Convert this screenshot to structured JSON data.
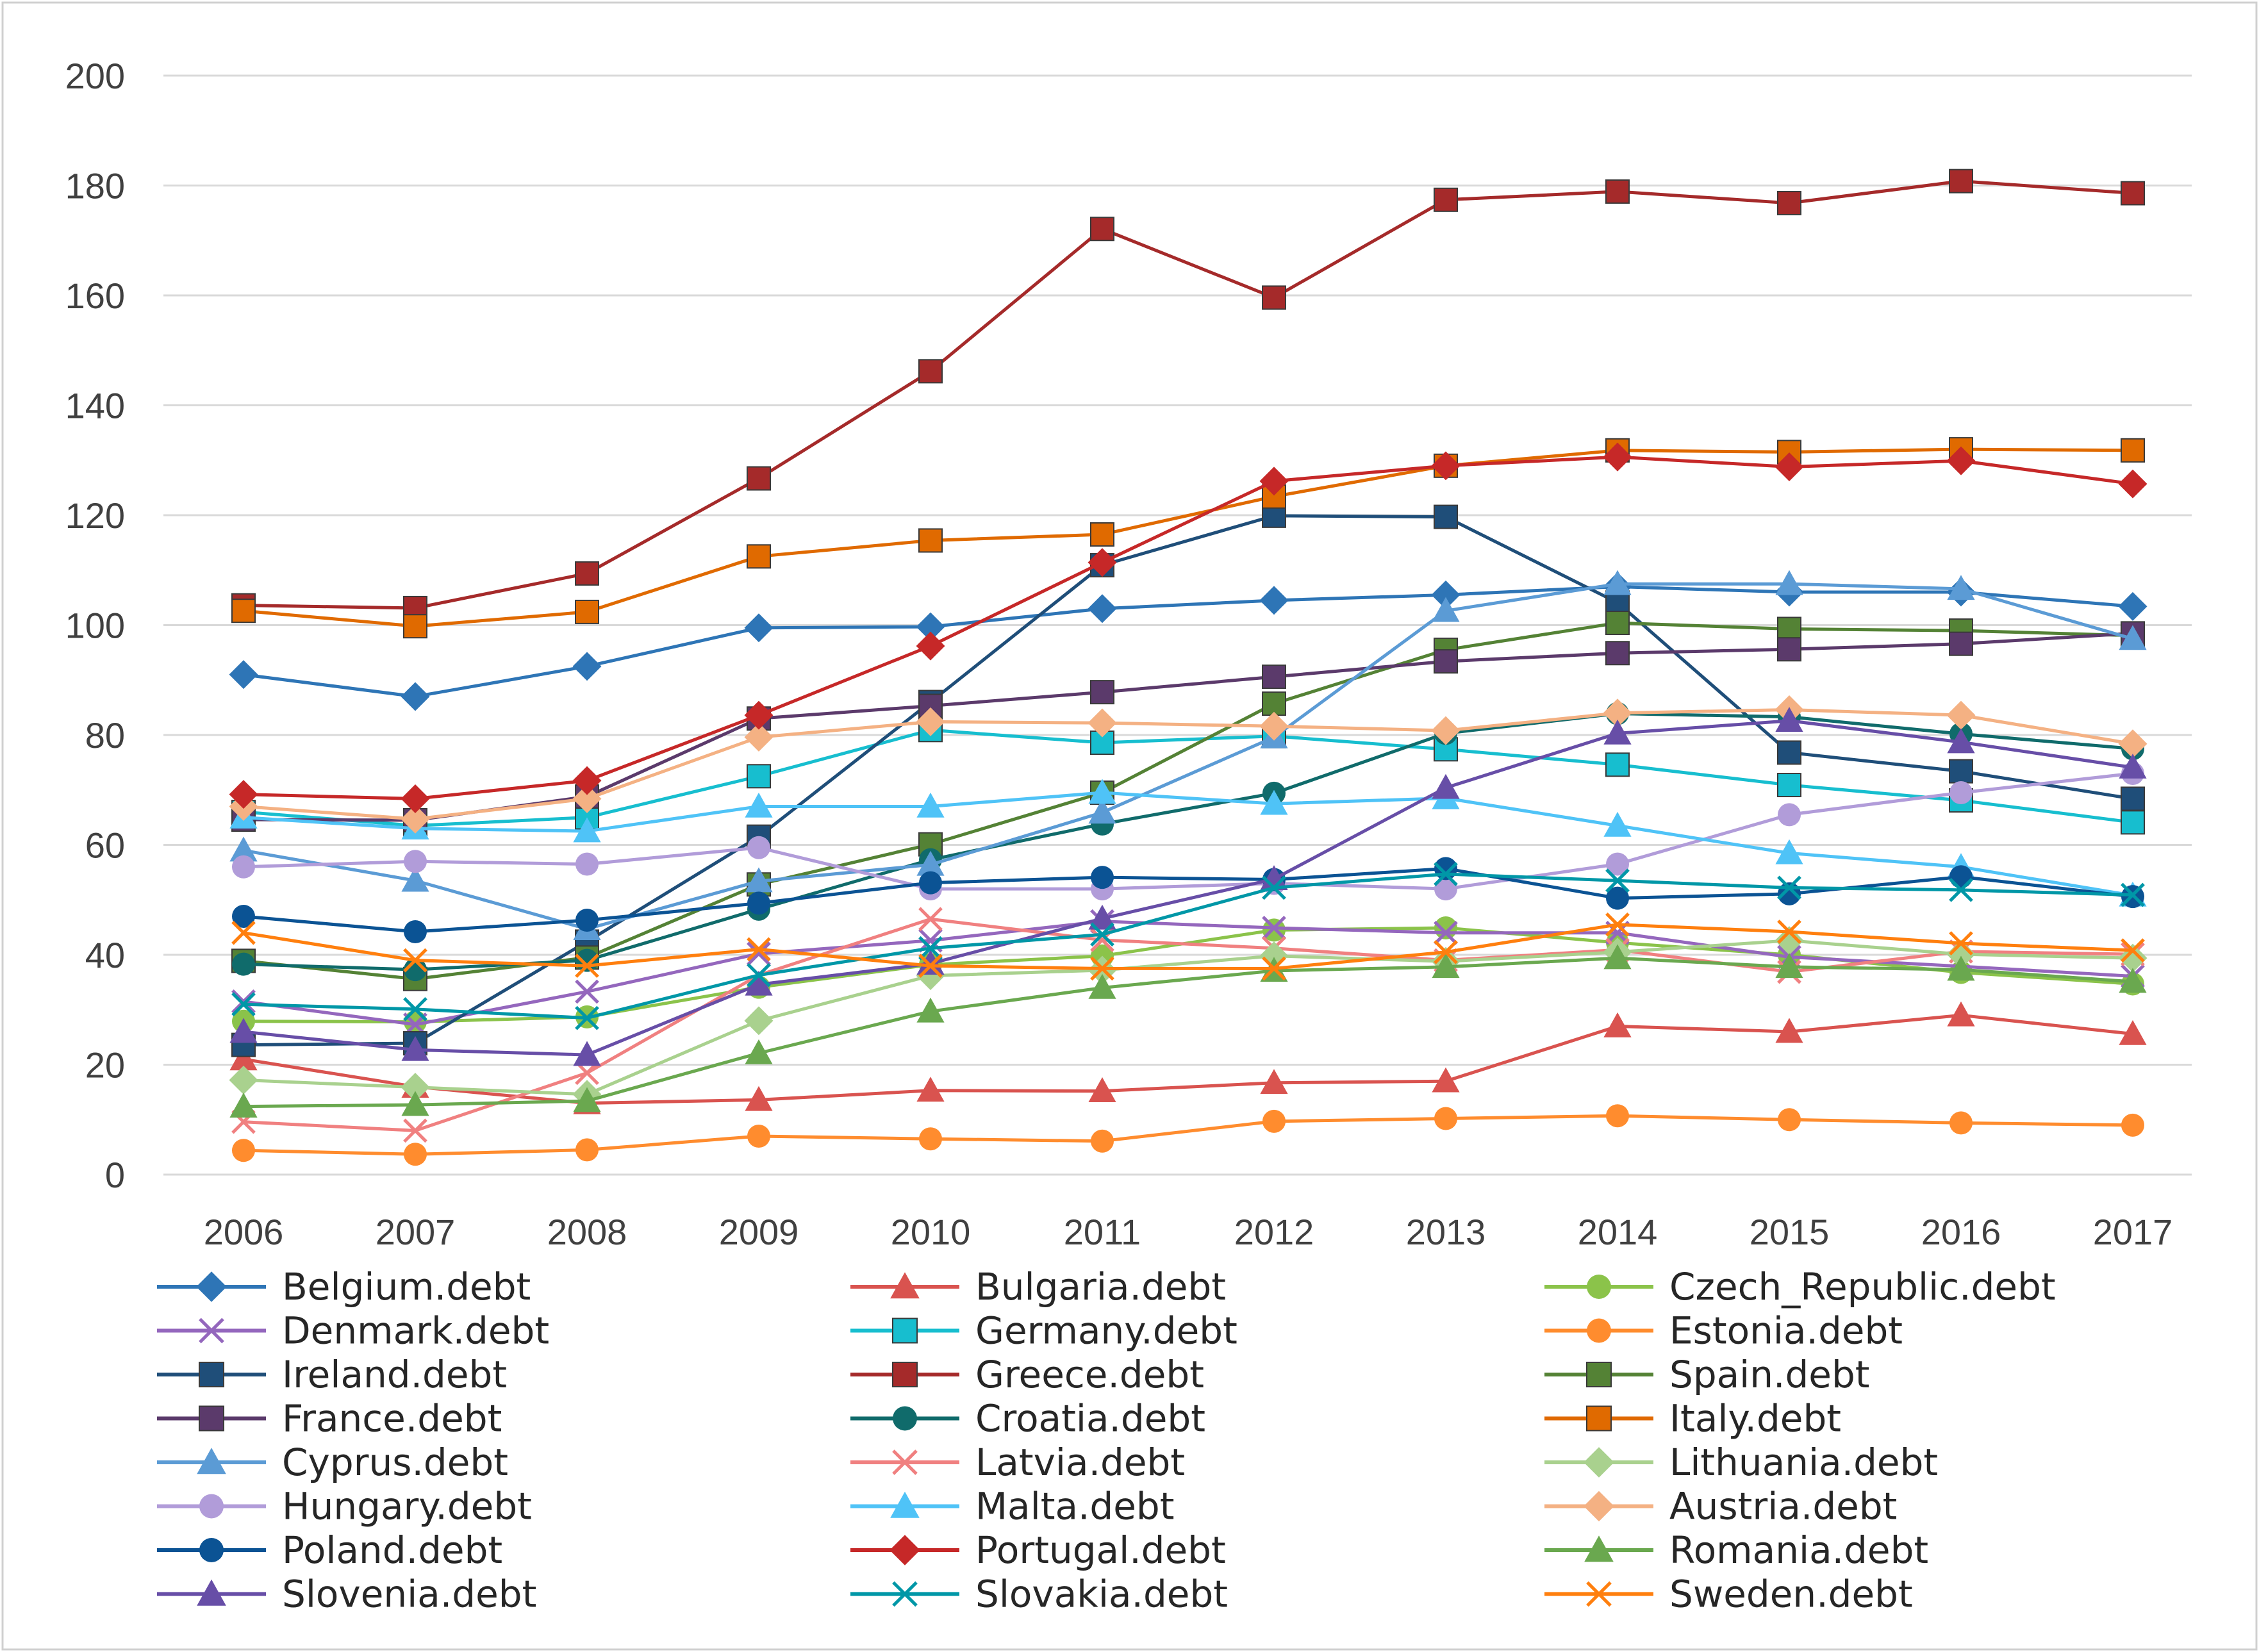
{
  "chart_data": {
    "type": "line",
    "title": "",
    "xlabel": "",
    "ylabel": "",
    "ylim": [
      0,
      200
    ],
    "y_ticks": [
      "0",
      "20",
      "40",
      "60",
      "80",
      "100",
      "120",
      "140",
      "160",
      "180",
      "200"
    ],
    "grid": true,
    "legend": "bottom",
    "categories": [
      "2006",
      "2007",
      "2008",
      "2009",
      "2010",
      "2011",
      "2012",
      "2013",
      "2014",
      "2015",
      "2016",
      "2017"
    ],
    "series": [
      {
        "name": "Belgium.debt",
        "color": "#2E75B6",
        "marker": "diamond",
        "values": [
          91,
          87,
          92.5,
          99.5,
          99.7,
          103,
          104.5,
          105.5,
          107,
          106,
          106,
          103.4
        ]
      },
      {
        "name": "Bulgaria.debt",
        "color": "#D9534F",
        "marker": "triangle",
        "values": [
          21,
          16,
          13,
          13.6,
          15.3,
          15.2,
          16.7,
          17,
          27,
          26,
          29,
          25.6
        ]
      },
      {
        "name": "Czech_Republic.debt",
        "color": "#8BC34A",
        "marker": "circle",
        "values": [
          27.9,
          27.8,
          28.7,
          34.1,
          38.2,
          39.8,
          44.5,
          44.9,
          42.2,
          40,
          36.8,
          34.7
        ]
      },
      {
        "name": "Denmark.debt",
        "color": "#9467BD",
        "marker": "x",
        "values": [
          31.5,
          27.3,
          33.3,
          40.2,
          42.6,
          46.1,
          44.9,
          44,
          44,
          39.6,
          37.9,
          36.1
        ]
      },
      {
        "name": "Germany.debt",
        "color": "#17BECF",
        "marker": "square",
        "values": [
          66,
          63.5,
          65,
          72.5,
          80.9,
          78.6,
          79.8,
          77.4,
          74.6,
          70.9,
          68.1,
          64.1
        ]
      },
      {
        "name": "Estonia.debt",
        "color": "#FF8C2E",
        "marker": "circle",
        "values": [
          4.4,
          3.7,
          4.5,
          7,
          6.5,
          6.1,
          9.7,
          10.2,
          10.7,
          10,
          9.4,
          9
        ]
      },
      {
        "name": "Ireland.debt",
        "color": "#1F4E79",
        "marker": "square",
        "values": [
          23.6,
          23.9,
          42.4,
          61.5,
          86,
          110.9,
          119.9,
          119.7,
          104.1,
          76.8,
          73.4,
          68.4
        ]
      },
      {
        "name": "Greece.debt",
        "color": "#A52A2A",
        "marker": "square",
        "values": [
          103.6,
          103.1,
          109.4,
          126.7,
          146.2,
          172.1,
          159.6,
          177.4,
          178.9,
          176.8,
          180.8,
          178.6
        ]
      },
      {
        "name": "Spain.debt",
        "color": "#548235",
        "marker": "square",
        "values": [
          38.9,
          35.6,
          39.5,
          52.8,
          60.1,
          69.5,
          85.7,
          95.5,
          100.4,
          99.3,
          99,
          98.1
        ]
      },
      {
        "name": "France.debt",
        "color": "#5B3A6B",
        "marker": "square",
        "values": [
          64.6,
          64.5,
          68.8,
          83,
          85.3,
          87.8,
          90.6,
          93.4,
          94.9,
          95.6,
          96.6,
          98.5
        ]
      },
      {
        "name": "Croatia.debt",
        "color": "#106B6B",
        "marker": "circle",
        "values": [
          38.3,
          37.3,
          39,
          48.3,
          57.3,
          63.8,
          69.4,
          80.3,
          83.9,
          83.3,
          80.2,
          77.5
        ]
      },
      {
        "name": "Italy.debt",
        "color": "#E06A00",
        "marker": "square",
        "values": [
          102.6,
          99.8,
          102.4,
          112.5,
          115.4,
          116.5,
          123.4,
          129,
          131.8,
          131.5,
          132,
          131.8
        ]
      },
      {
        "name": "Cyprus.debt",
        "color": "#5B9BD5",
        "marker": "triangle",
        "values": [
          59,
          53.5,
          44.7,
          53.4,
          56.4,
          65.9,
          79.6,
          102.6,
          107.5,
          107.5,
          106.6,
          97.5
        ]
      },
      {
        "name": "Latvia.debt",
        "color": "#F08080",
        "marker": "x",
        "values": [
          9.6,
          8,
          18.5,
          36.3,
          46.5,
          42.7,
          41.2,
          39,
          40.9,
          36.9,
          40.6,
          40.1
        ]
      },
      {
        "name": "Lithuania.debt",
        "color": "#A9D18E",
        "marker": "diamond",
        "values": [
          17.2,
          15.9,
          14.6,
          28,
          36.2,
          37.2,
          39.8,
          38.8,
          40.5,
          42.6,
          40.1,
          39.4
        ]
      },
      {
        "name": "Hungary.debt",
        "color": "#B19CD9",
        "marker": "circle",
        "values": [
          56,
          57,
          56.5,
          59.5,
          52,
          52,
          53,
          52,
          56.5,
          65.5,
          69.5,
          73
        ]
      },
      {
        "name": "Malta.debt",
        "color": "#4FC3F7",
        "marker": "triangle",
        "values": [
          65,
          63,
          62.5,
          67,
          67,
          69.5,
          67.5,
          68.5,
          63.5,
          58.5,
          56,
          50.8
        ]
      },
      {
        "name": "Austria.debt",
        "color": "#F4B183",
        "marker": "diamond",
        "values": [
          67,
          64.7,
          68.4,
          79.6,
          82.4,
          82.2,
          81.6,
          80.8,
          84,
          84.6,
          83.6,
          78.4
        ]
      },
      {
        "name": "Poland.debt",
        "color": "#0B5394",
        "marker": "circle",
        "values": [
          47,
          44.2,
          46.3,
          49.4,
          53.1,
          54.1,
          53.7,
          55.7,
          50.3,
          51.1,
          54.2,
          50.6
        ]
      },
      {
        "name": "Portugal.debt",
        "color": "#C62828",
        "marker": "diamond",
        "values": [
          69.2,
          68.4,
          71.7,
          83.6,
          96.2,
          111.4,
          126.2,
          129,
          130.6,
          128.8,
          129.9,
          125.7
        ]
      },
      {
        "name": "Romania.debt",
        "color": "#6AA84F",
        "marker": "triangle",
        "values": [
          12.4,
          12.7,
          13.4,
          22.1,
          29.7,
          34,
          37.1,
          37.8,
          39.4,
          37.8,
          37.3,
          35.1
        ]
      },
      {
        "name": "Slovenia.debt",
        "color": "#674EA7",
        "marker": "triangle",
        "values": [
          26,
          22.7,
          21.8,
          34.6,
          38.4,
          46.6,
          53.8,
          70.4,
          80.3,
          82.6,
          78.7,
          74.1
        ]
      },
      {
        "name": "Slovakia.debt",
        "color": "#0097A7",
        "marker": "x",
        "values": [
          31,
          30.1,
          28.5,
          36.3,
          41.2,
          43.7,
          52.2,
          54.7,
          53.5,
          52.2,
          51.8,
          50.9
        ]
      },
      {
        "name": "Sweden.debt",
        "color": "#FF7F0E",
        "marker": "x",
        "values": [
          44,
          39,
          38,
          41,
          38,
          37.5,
          37.5,
          40.5,
          45.5,
          44.2,
          42.1,
          40.8
        ]
      }
    ]
  }
}
